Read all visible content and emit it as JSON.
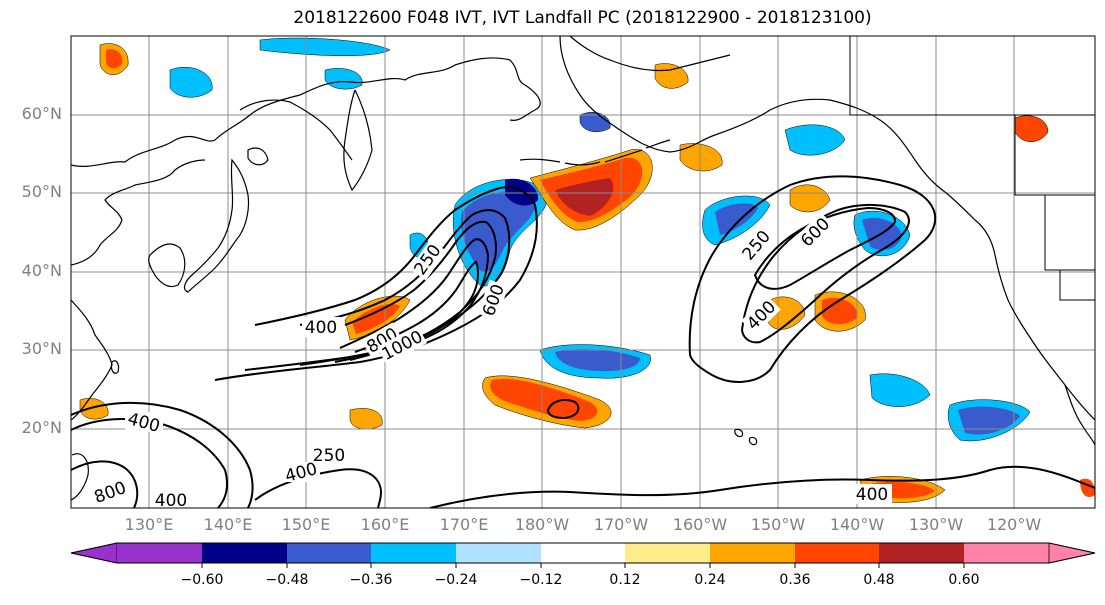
{
  "title": "2018122600 F048 IVT, IVT Landfall PC (2018122900 - 2018123100)",
  "map": {
    "lat_labels": [
      "60°N",
      "50°N",
      "40°N",
      "30°N",
      "20°N"
    ],
    "lon_labels": [
      "130°E",
      "140°E",
      "150°E",
      "160°E",
      "170°E",
      "180°W",
      "170°W",
      "160°W",
      "150°W",
      "140°W",
      "130°W",
      "120°W"
    ],
    "contour_labels": [
      "250",
      "400",
      "600",
      "800",
      "1000",
      "250",
      "600",
      "400",
      "400",
      "250",
      "400",
      "800",
      "400",
      "400"
    ],
    "colors": {
      "land_outline": "#000000",
      "gridline": "#8c8c8c",
      "contour": "#000000"
    }
  },
  "colorbar": {
    "tick_labels": [
      "−0.60",
      "−0.48",
      "−0.36",
      "−0.24",
      "−0.12",
      "0.12",
      "0.24",
      "0.36",
      "0.48",
      "0.60"
    ],
    "bins": [
      {
        "color": "#9932cc"
      },
      {
        "color": "#00008b"
      },
      {
        "color": "#3a5bcd"
      },
      {
        "color": "#00bfff"
      },
      {
        "color": "#b0e2ff"
      },
      {
        "color": "#ffffff"
      },
      {
        "color": "#ffec8b"
      },
      {
        "color": "#ffa500"
      },
      {
        "color": "#ff4500"
      },
      {
        "color": "#b22222"
      },
      {
        "color": "#ff82ab"
      }
    ]
  }
}
